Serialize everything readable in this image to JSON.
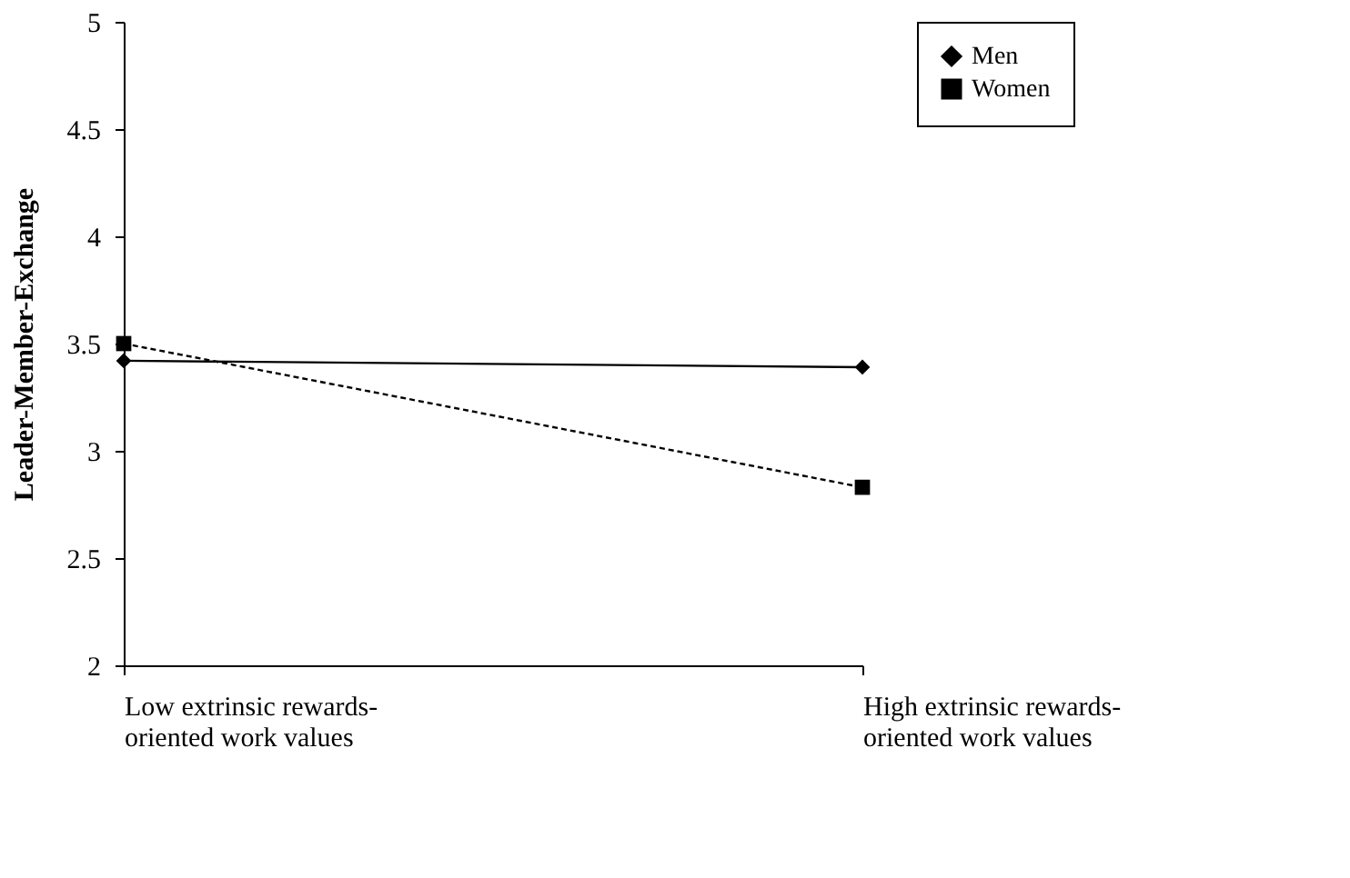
{
  "chart_data": {
    "type": "line",
    "ylabel": "Leader-Member-Exchange",
    "categories": [
      "Low extrinsic rewards-oriented work values",
      "High extrinsic rewards-oriented work values"
    ],
    "series": [
      {
        "name": "Men",
        "color": "#000000",
        "values": [
          3.42,
          3.39
        ],
        "marker": "diamond",
        "line_style": "solid"
      },
      {
        "name": "Women",
        "color": "#000000",
        "values": [
          3.5,
          2.83
        ],
        "marker": "square",
        "line_style": "dashed"
      }
    ],
    "ylim": [
      2,
      5
    ],
    "yticks": [
      2,
      2.5,
      3,
      3.5,
      4,
      4.5,
      5
    ],
    "grid": false,
    "legend": "right"
  }
}
